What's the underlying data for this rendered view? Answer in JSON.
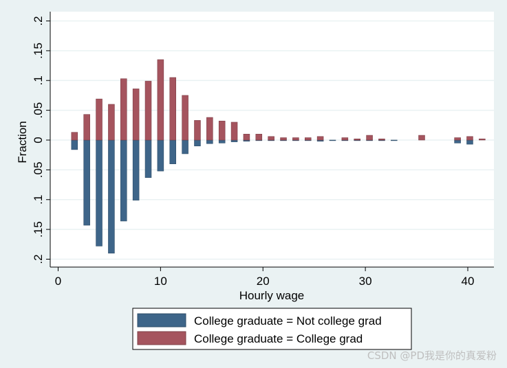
{
  "chart_data": {
    "type": "bar",
    "xlabel": "Hourly wage",
    "ylabel": "Fraction",
    "xlim": [
      -0.5,
      42.3
    ],
    "ylim": [
      -0.2,
      0.2
    ],
    "x_ticks": [
      0,
      10,
      20,
      30,
      40
    ],
    "x_tick_labels": [
      "0",
      "10",
      "20",
      "30",
      "40"
    ],
    "y_ticks": [
      -0.2,
      -0.15,
      -0.1,
      -0.05,
      0,
      0.05,
      0.1,
      0.15,
      0.2
    ],
    "y_tick_labels": [
      ".2",
      ".15",
      ".1",
      ".05",
      "0",
      ".05",
      ".1",
      ".15",
      ".2"
    ],
    "grid": true,
    "legend_position": "bottom",
    "bar_width": 0.6,
    "series": [
      {
        "name": "College graduate = Not college grad",
        "color": "#3e6589",
        "direction": "down",
        "x": [
          1.6,
          2.8,
          4.0,
          5.2,
          6.4,
          7.6,
          8.8,
          10.0,
          11.2,
          12.4,
          13.6,
          14.8,
          16.0,
          17.2,
          18.4,
          19.6,
          20.8,
          22.0,
          23.2,
          24.4,
          25.6,
          26.8,
          28.0,
          29.2,
          30.4,
          31.6,
          32.8,
          39.0,
          40.2
        ],
        "values": [
          0.016,
          0.143,
          0.178,
          0.19,
          0.136,
          0.101,
          0.063,
          0.052,
          0.04,
          0.023,
          0.01,
          0.006,
          0.005,
          0.003,
          0.002,
          0.001,
          0.001,
          0.001,
          0.001,
          0.001,
          0.002,
          0.001,
          0.001,
          0.001,
          0.001,
          0.001,
          0.001,
          0.005,
          0.007
        ]
      },
      {
        "name": "College graduate = College grad",
        "color": "#a5545e",
        "direction": "up",
        "x": [
          1.6,
          2.8,
          4.0,
          5.2,
          6.4,
          7.6,
          8.8,
          10.0,
          11.2,
          12.4,
          13.6,
          14.8,
          16.0,
          17.2,
          18.4,
          19.6,
          20.8,
          22.0,
          23.2,
          24.4,
          25.6,
          28.0,
          29.2,
          30.4,
          31.6,
          35.5,
          39.0,
          40.2,
          41.4
        ],
        "values": [
          0.013,
          0.043,
          0.069,
          0.06,
          0.103,
          0.086,
          0.099,
          0.135,
          0.105,
          0.075,
          0.033,
          0.038,
          0.032,
          0.03,
          0.01,
          0.01,
          0.006,
          0.004,
          0.004,
          0.004,
          0.006,
          0.004,
          0.002,
          0.008,
          0.002,
          0.008,
          0.004,
          0.006,
          0.002
        ]
      }
    ]
  },
  "legend": {
    "items": [
      {
        "label": "College graduate = Not college grad",
        "color": "#3e6589"
      },
      {
        "label": "College graduate = College grad",
        "color": "#a5545e"
      }
    ]
  },
  "watermark": "CSDN @PD我是你的真爱粉"
}
